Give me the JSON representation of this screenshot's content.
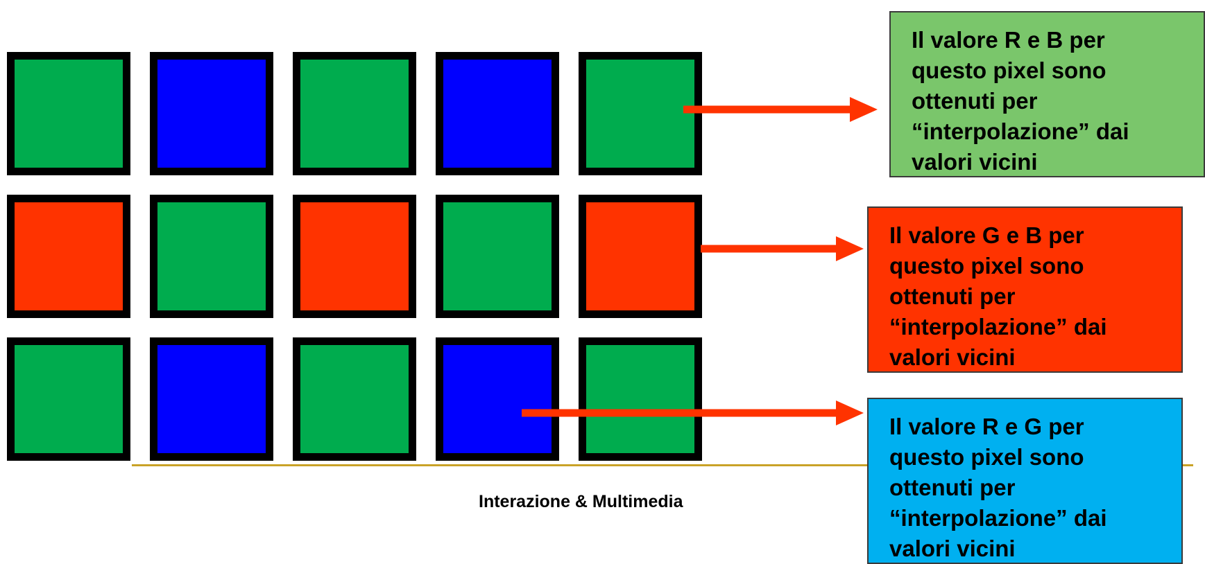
{
  "colors": {
    "green": "#00ac4e",
    "blue": "#0000ff",
    "red": "#ff3300",
    "frame": "#000000",
    "accent_line": "#c9a227",
    "arrow": "#ff3300"
  },
  "grid": [
    [
      "green",
      "blue",
      "green",
      "blue",
      "green"
    ],
    [
      "red",
      "green",
      "red",
      "green",
      "red"
    ],
    [
      "green",
      "blue",
      "green",
      "blue",
      "green"
    ]
  ],
  "callouts": [
    {
      "id": "c1",
      "text": "Il valore R e B per\nquesto pixel sono\nottenuti per\n“interpolazione” dai\nvalori vicini",
      "bg": "#7ac66b"
    },
    {
      "id": "c2",
      "text": "Il valore G e B per\nquesto pixel sono\nottenuti per\n“interpolazione” dai\nvalori vicini",
      "bg": "#ff3300"
    },
    {
      "id": "c3",
      "text": "Il valore R e G per\nquesto pixel sono\nottenuti per\n“interpolazione” dai\nvalori vicini",
      "bg": "#00b0f0"
    }
  ],
  "footer": {
    "text": "Interazione & Multimedia"
  }
}
